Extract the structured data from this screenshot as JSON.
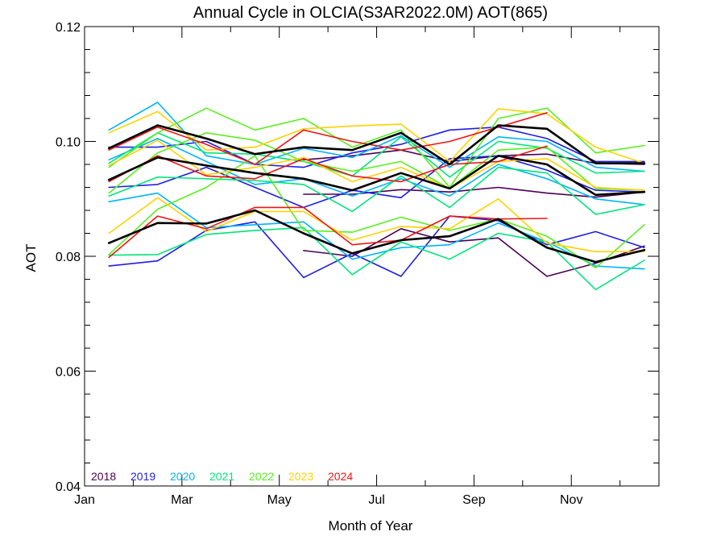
{
  "chart_data": {
    "type": "line",
    "title": "Annual Cycle in OLCIA(S3AR2022.0M) AOT(865)",
    "xlabel": "Month of Year",
    "ylabel": "AOT",
    "xlim": [
      1,
      12.8
    ],
    "ylim": [
      0.04,
      0.12
    ],
    "x_ticks": [
      {
        "x": 1,
        "label": "Jan"
      },
      {
        "x": 3,
        "label": "Mar"
      },
      {
        "x": 5,
        "label": "May"
      },
      {
        "x": 7,
        "label": "Jul"
      },
      {
        "x": 9,
        "label": "Sep"
      },
      {
        "x": 11,
        "label": "Nov"
      }
    ],
    "y_ticks": [
      {
        "y": 0.04,
        "label": "0.04"
      },
      {
        "y": 0.06,
        "label": "0.06"
      },
      {
        "y": 0.08,
        "label": "0.08"
      },
      {
        "y": 0.1,
        "label": "0.10"
      },
      {
        "y": 0.12,
        "label": "0.12"
      }
    ],
    "legend": {
      "placement": "bottom-left",
      "entries": [
        {
          "label": "2018",
          "color": "#4b0055"
        },
        {
          "label": "2019",
          "color": "#1e1ee6"
        },
        {
          "label": "2020",
          "color": "#00b4ff"
        },
        {
          "label": "2021",
          "color": "#00e67a"
        },
        {
          "label": "2022",
          "color": "#5aee1e"
        },
        {
          "label": "2023",
          "color": "#ffd200"
        },
        {
          "label": "2024",
          "color": "#f01414"
        }
      ]
    },
    "series": [
      {
        "name": "2018",
        "color": "#4b0055",
        "x": [
          5.5,
          6.5,
          7.5,
          8.5,
          9.5,
          10.5,
          11.5,
          12.5
        ],
        "y": [
          0.0908,
          0.0908,
          0.0916,
          0.0912,
          0.092,
          0.091,
          0.0903,
          0.0912
        ]
      },
      {
        "name": "2018",
        "color": "#4b0055",
        "x": [
          5.5,
          6.5,
          7.5,
          8.5,
          9.5,
          10.5,
          11.5,
          12.5
        ],
        "y": [
          0.081,
          0.08,
          0.0848,
          0.0825,
          0.0832,
          0.0765,
          0.0788,
          0.0818
        ]
      },
      {
        "name": "2018",
        "color": "#4b0055",
        "x": [
          5.5,
          6.5,
          7.5,
          8.5,
          9.5,
          10.5,
          11.5,
          12.5
        ],
        "y": [
          0.0968,
          0.0975,
          0.0985,
          0.0965,
          0.0975,
          0.0978,
          0.0962,
          0.096
        ]
      },
      {
        "name": "2019",
        "color": "#1e1ee6",
        "x": [
          1.5,
          2.5,
          3.5,
          4.5,
          5.5,
          6.5,
          7.5,
          8.5,
          9.5,
          10.5,
          11.5,
          12.5
        ],
        "y": [
          0.099,
          0.099,
          0.1,
          0.096,
          0.0955,
          0.098,
          0.0995,
          0.102,
          0.1025,
          0.1005,
          0.0965,
          0.0965
        ]
      },
      {
        "name": "2019",
        "color": "#1e1ee6",
        "x": [
          1.5,
          2.5,
          3.5,
          4.5,
          5.5,
          6.5,
          7.5,
          8.5,
          9.5,
          10.5,
          11.5,
          12.5
        ],
        "y": [
          0.092,
          0.0925,
          0.0955,
          0.092,
          0.0885,
          0.0915,
          0.0902,
          0.097,
          0.0975,
          0.095,
          0.0915,
          0.0912
        ]
      },
      {
        "name": "2019",
        "color": "#1e1ee6",
        "x": [
          1.5,
          2.5,
          3.5,
          4.5,
          5.5,
          6.5,
          7.5,
          8.5,
          9.5,
          10.5,
          11.5,
          12.5
        ],
        "y": [
          0.0783,
          0.0792,
          0.0845,
          0.086,
          0.0763,
          0.0805,
          0.0765,
          0.087,
          0.0862,
          0.082,
          0.0843,
          0.0815
        ]
      },
      {
        "name": "2020",
        "color": "#00b4ff",
        "x": [
          1.5,
          2.5,
          3.5,
          4.5,
          5.5,
          6.5,
          7.5,
          8.5,
          9.5,
          10.5,
          11.5,
          12.5
        ],
        "y": [
          0.102,
          0.1068,
          0.0975,
          0.096,
          0.0988,
          0.0972,
          0.101,
          0.0955,
          0.1008,
          0.1,
          0.0955,
          0.0948
        ]
      },
      {
        "name": "2020",
        "color": "#00b4ff",
        "x": [
          1.5,
          2.5,
          3.5,
          4.5,
          5.5,
          6.5,
          7.5,
          8.5,
          9.5,
          10.5,
          11.5,
          12.5
        ],
        "y": [
          0.0895,
          0.091,
          0.085,
          0.0855,
          0.086,
          0.0795,
          0.0815,
          0.082,
          0.0858,
          0.0825,
          0.0783,
          0.0778
        ]
      },
      {
        "name": "2020",
        "color": "#00b4ff",
        "x": [
          1.5,
          2.5,
          3.5,
          4.5,
          5.5,
          6.5,
          7.5,
          8.5,
          9.5,
          10.5,
          11.5,
          12.5
        ],
        "y": [
          0.0968,
          0.1005,
          0.0965,
          0.0925,
          0.0935,
          0.0905,
          0.0935,
          0.0905,
          0.096,
          0.0935,
          0.09,
          0.089
        ]
      },
      {
        "name": "2021",
        "color": "#00e67a",
        "x": [
          1.5,
          2.5,
          3.5,
          4.5,
          5.5,
          6.5,
          7.5,
          8.5,
          9.5,
          10.5,
          11.5,
          12.5
        ],
        "y": [
          0.0962,
          0.1015,
          0.098,
          0.0978,
          0.0965,
          0.094,
          0.1008,
          0.0938,
          0.1,
          0.0988,
          0.0945,
          0.0948
        ]
      },
      {
        "name": "2021",
        "color": "#00e67a",
        "x": [
          1.5,
          2.5,
          3.5,
          4.5,
          5.5,
          6.5,
          7.5,
          8.5,
          9.5,
          10.5,
          11.5,
          12.5
        ],
        "y": [
          0.0905,
          0.0938,
          0.0935,
          0.0932,
          0.0925,
          0.0878,
          0.094,
          0.0885,
          0.0955,
          0.0945,
          0.0873,
          0.089
        ]
      },
      {
        "name": "2021",
        "color": "#00e67a",
        "x": [
          1.5,
          2.5,
          3.5,
          4.5,
          5.5,
          6.5,
          7.5,
          8.5,
          9.5,
          10.5,
          11.5,
          12.5
        ],
        "y": [
          0.0802,
          0.0803,
          0.0838,
          0.0845,
          0.085,
          0.0768,
          0.0825,
          0.0795,
          0.084,
          0.0825,
          0.0742,
          0.0793
        ]
      },
      {
        "name": "2022",
        "color": "#5aee1e",
        "x": [
          1.5,
          2.5,
          3.5,
          4.5,
          5.5,
          6.5,
          7.5,
          8.5,
          9.5,
          10.5,
          11.5,
          12.5
        ],
        "y": [
          0.0955,
          0.1015,
          0.1058,
          0.102,
          0.104,
          0.099,
          0.102,
          0.092,
          0.104,
          0.1058,
          0.098,
          0.0993
        ]
      },
      {
        "name": "2022",
        "color": "#5aee1e",
        "x": [
          1.5,
          2.5,
          3.5,
          4.5,
          5.5,
          6.5,
          7.5,
          8.5,
          9.5,
          10.5,
          11.5,
          12.5
        ],
        "y": [
          0.091,
          0.098,
          0.1015,
          0.1002,
          0.0965,
          0.0948,
          0.0965,
          0.0918,
          0.0985,
          0.099,
          0.0918,
          0.0915
        ]
      },
      {
        "name": "2022",
        "color": "#5aee1e",
        "x": [
          1.5,
          2.5,
          3.5,
          4.5,
          5.5,
          6.5,
          7.5,
          8.5,
          9.5,
          10.5,
          11.5,
          12.5
        ],
        "y": [
          0.0803,
          0.0882,
          0.092,
          0.0975,
          0.0845,
          0.0842,
          0.0868,
          0.0845,
          0.0865,
          0.0835,
          0.078,
          0.0855
        ]
      },
      {
        "name": "2023",
        "color": "#ffd200",
        "x": [
          1.5,
          2.5,
          3.5,
          4.5,
          5.5,
          6.5,
          7.5,
          8.5,
          9.5,
          10.5,
          11.5,
          12.5
        ],
        "y": [
          0.1015,
          0.1052,
          0.0985,
          0.099,
          0.1022,
          0.1027,
          0.103,
          0.0965,
          0.1057,
          0.1048,
          0.099,
          0.0962
        ]
      },
      {
        "name": "2023",
        "color": "#ffd200",
        "x": [
          1.5,
          2.5,
          3.5,
          4.5,
          5.5,
          6.5,
          7.5,
          8.5,
          9.5,
          10.5,
          11.5,
          12.5
        ],
        "y": [
          0.0958,
          0.1002,
          0.0942,
          0.0955,
          0.0972,
          0.093,
          0.0955,
          0.0918,
          0.0965,
          0.097,
          0.092,
          0.0915
        ]
      },
      {
        "name": "2023",
        "color": "#ffd200",
        "x": [
          1.5,
          2.5,
          3.5,
          4.5,
          5.5,
          6.5,
          7.5,
          8.5,
          9.5,
          10.5,
          11.5,
          12.5
        ],
        "y": [
          0.084,
          0.0902,
          0.0843,
          0.0878,
          0.0878,
          0.0828,
          0.0852,
          0.0848,
          0.09,
          0.0823,
          0.0808,
          0.0808
        ]
      },
      {
        "name": "2024",
        "color": "#f01414",
        "x": [
          1.5,
          2.5,
          3.5,
          4.5,
          5.5,
          6.5,
          7.5,
          8.5,
          9.5,
          10.5
        ],
        "y": [
          0.0985,
          0.1025,
          0.0995,
          0.096,
          0.102,
          0.1,
          0.0985,
          0.1,
          0.1025,
          0.105
        ]
      },
      {
        "name": "2024",
        "color": "#f01414",
        "x": [
          1.5,
          2.5,
          3.5,
          4.5,
          5.5,
          6.5,
          7.5,
          8.5,
          9.5,
          10.5
        ],
        "y": [
          0.093,
          0.0975,
          0.094,
          0.0935,
          0.097,
          0.094,
          0.093,
          0.096,
          0.0965,
          0.0992
        ]
      },
      {
        "name": "2024",
        "color": "#f01414",
        "x": [
          1.5,
          2.5,
          3.5,
          4.5,
          5.5,
          6.5,
          7.5,
          8.5,
          9.5,
          10.5
        ],
        "y": [
          0.0798,
          0.087,
          0.0848,
          0.0885,
          0.0885,
          0.082,
          0.0828,
          0.087,
          0.0865,
          0.0866
        ]
      },
      {
        "name": "",
        "color": "#000000",
        "width": 2.6,
        "x": [
          1.5,
          2.5,
          3.5,
          4.5,
          5.5,
          6.5,
          7.5,
          8.5,
          9.5,
          10.5,
          11.5,
          12.5
        ],
        "y": [
          0.0988,
          0.1028,
          0.1005,
          0.0978,
          0.099,
          0.0985,
          0.1015,
          0.096,
          0.1028,
          0.1022,
          0.0962,
          0.0962
        ]
      },
      {
        "name": "",
        "color": "#000000",
        "width": 2.6,
        "x": [
          1.5,
          2.5,
          3.5,
          4.5,
          5.5,
          6.5,
          7.5,
          8.5,
          9.5,
          10.5,
          11.5,
          12.5
        ],
        "y": [
          0.0933,
          0.0972,
          0.0958,
          0.0945,
          0.0935,
          0.0915,
          0.0945,
          0.0918,
          0.0975,
          0.096,
          0.0907,
          0.0912
        ]
      },
      {
        "name": "",
        "color": "#000000",
        "width": 2.6,
        "x": [
          1.5,
          2.5,
          3.5,
          4.5,
          5.5,
          6.5,
          7.5,
          8.5,
          9.5,
          10.5,
          11.5,
          12.5
        ],
        "y": [
          0.0823,
          0.0858,
          0.0857,
          0.088,
          0.084,
          0.0805,
          0.0828,
          0.0835,
          0.0865,
          0.0815,
          0.079,
          0.0811
        ]
      }
    ]
  }
}
